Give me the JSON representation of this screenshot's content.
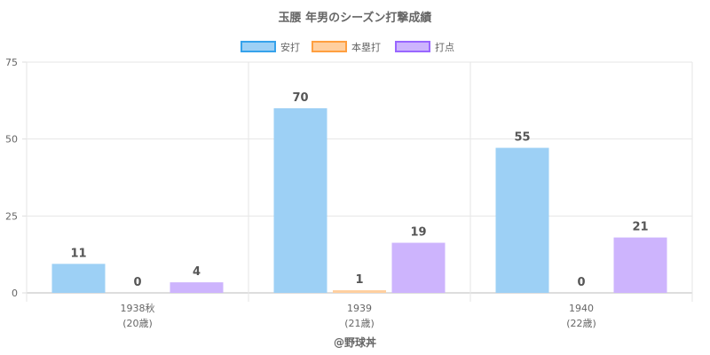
{
  "chart_data": {
    "type": "bar",
    "title": "玉腰 年男のシーズン打撃成績",
    "categories": [
      "1938秋",
      "1939",
      "1940"
    ],
    "category_sublabels": [
      "(20歳)",
      "(21歳)",
      "(22歳)"
    ],
    "series": [
      {
        "name": "安打",
        "values": [
          11,
          70,
          55
        ],
        "color": "#9dd0f5",
        "border": "#36a2eb"
      },
      {
        "name": "本塁打",
        "values": [
          0,
          1,
          0
        ],
        "color": "#ffcf9f",
        "border": "#ff9f40"
      },
      {
        "name": "打点",
        "values": [
          4,
          19,
          21
        ],
        "color": "#cdb4fd",
        "border": "#9966ff"
      }
    ],
    "yticks": [
      0,
      25,
      50,
      75
    ],
    "ylim": [
      0,
      75
    ],
    "grid": true,
    "legend": "top-center",
    "xlabel": "",
    "ylabel": ""
  },
  "credit": "@野球丼"
}
